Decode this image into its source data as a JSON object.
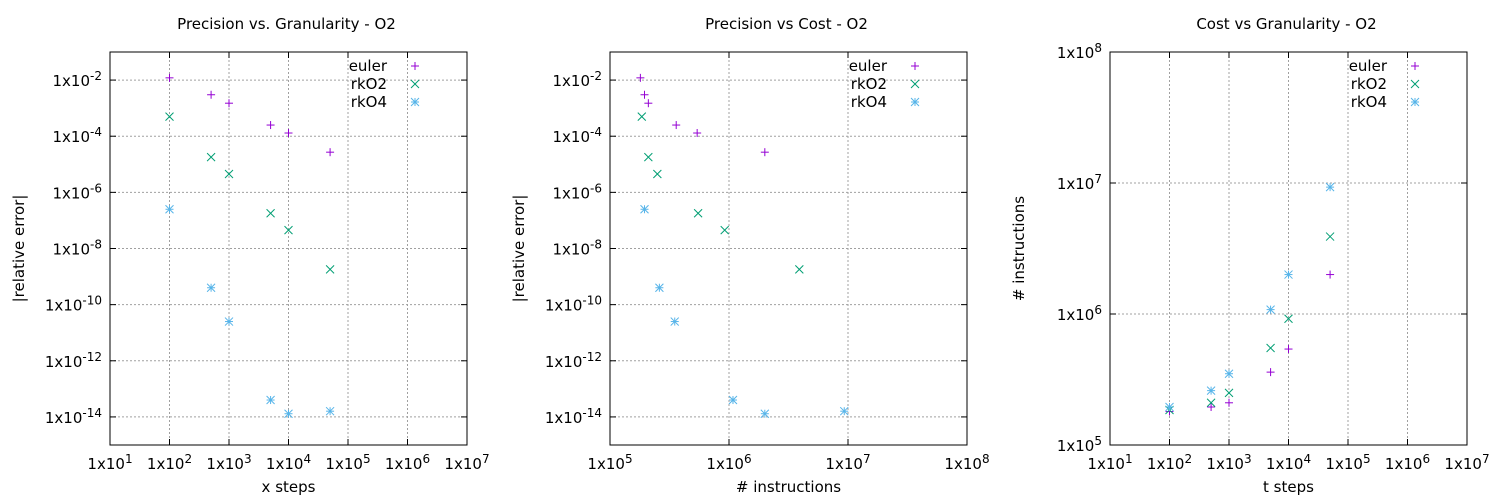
{
  "colors": {
    "euler": "#9400d3",
    "rkO2": "#009e73",
    "rkO4": "#56b4e9"
  },
  "chart_data": [
    {
      "type": "scatter",
      "title": "Precision vs. Granularity - O2",
      "xlabel": "x steps",
      "ylabel": "|relative error|",
      "xscale": "log",
      "yscale": "log",
      "xlim": [
        10,
        10000000
      ],
      "ylim": [
        1e-15,
        0.1
      ],
      "xticks": [
        10,
        100,
        1000,
        10000,
        100000,
        1000000,
        10000000
      ],
      "xtick_labels": [
        "1x10^1",
        "1x10^2",
        "1x10^3",
        "1x10^4",
        "1x10^5",
        "1x10^6",
        "1x10^7"
      ],
      "yticks": [
        1e-14,
        1e-12,
        1e-10,
        1e-08,
        1e-06,
        0.0001,
        0.01
      ],
      "ytick_labels": [
        "1x10^-14",
        "1x10^-12",
        "1x10^-10",
        "1x10^-8",
        "1x10^-6",
        "1x10^-4",
        "1x10^-2"
      ],
      "grid": true,
      "legend": "top-right",
      "series": [
        {
          "name": "euler",
          "marker": "plus",
          "x": [
            100,
            500,
            1000,
            5000,
            10000,
            50000
          ],
          "y": [
            0.012,
            0.003,
            0.0015,
            0.00025,
            0.00013,
            2.7e-05
          ]
        },
        {
          "name": "rkO2",
          "marker": "cross",
          "x": [
            100,
            500,
            1000,
            5000,
            10000,
            50000
          ],
          "y": [
            0.0005,
            1.8e-05,
            4.5e-06,
            1.8e-07,
            4.5e-08,
            1.8e-09
          ]
        },
        {
          "name": "rkO4",
          "marker": "star",
          "x": [
            100,
            500,
            1000,
            5000,
            10000,
            50000
          ],
          "y": [
            2.5e-07,
            4e-10,
            2.5e-11,
            4e-14,
            1.3e-14,
            1.6e-14
          ]
        }
      ]
    },
    {
      "type": "scatter",
      "title": "Precision vs Cost - O2",
      "xlabel": "# instructions",
      "ylabel": "|relative error|",
      "xscale": "log",
      "yscale": "log",
      "xlim": [
        100000,
        100000000
      ],
      "ylim": [
        1e-15,
        0.1
      ],
      "xticks": [
        100000,
        1000000,
        10000000,
        100000000
      ],
      "xtick_labels": [
        "1x10^5",
        "1x10^6",
        "1x10^7",
        "1x10^8"
      ],
      "yticks": [
        1e-14,
        1e-12,
        1e-10,
        1e-08,
        1e-06,
        0.0001,
        0.01
      ],
      "ytick_labels": [
        "1x10^-14",
        "1x10^-12",
        "1x10^-10",
        "1x10^-8",
        "1x10^-6",
        "1x10^-4",
        "1x10^-2"
      ],
      "grid": true,
      "legend": "top-right",
      "series": [
        {
          "name": "euler",
          "marker": "plus",
          "x": [
            180000,
            195000,
            210000,
            360000,
            540000,
            2000000
          ],
          "y": [
            0.012,
            0.003,
            0.0015,
            0.00025,
            0.00013,
            2.7e-05
          ]
        },
        {
          "name": "rkO2",
          "marker": "cross",
          "x": [
            185000,
            210000,
            250000,
            550000,
            920000,
            3900000
          ],
          "y": [
            0.0005,
            1.8e-05,
            4.5e-06,
            1.8e-07,
            4.5e-08,
            1.8e-09
          ]
        },
        {
          "name": "rkO4",
          "marker": "star",
          "x": [
            195000,
            260000,
            350000,
            1080000,
            2000000,
            9300000
          ],
          "y": [
            2.5e-07,
            4e-10,
            2.5e-11,
            4e-14,
            1.3e-14,
            1.6e-14
          ]
        }
      ]
    },
    {
      "type": "scatter",
      "title": "Cost vs Granularity - O2",
      "xlabel": "t steps",
      "ylabel": "# instructions",
      "xscale": "log",
      "yscale": "log",
      "xlim": [
        10,
        10000000
      ],
      "ylim": [
        100000,
        100000000
      ],
      "xticks": [
        10,
        100,
        1000,
        10000,
        100000,
        1000000,
        10000000
      ],
      "xtick_labels": [
        "1x10^1",
        "1x10^2",
        "1x10^3",
        "1x10^4",
        "1x10^5",
        "1x10^6",
        "1x10^7"
      ],
      "yticks": [
        100000,
        1000000,
        10000000,
        100000000
      ],
      "ytick_labels": [
        "1x10^5",
        "1x10^6",
        "1x10^7",
        "1x10^8"
      ],
      "grid": true,
      "legend": "top-right",
      "series": [
        {
          "name": "euler",
          "marker": "plus",
          "x": [
            100,
            500,
            1000,
            5000,
            10000,
            50000
          ],
          "y": [
            180000,
            195000,
            210000,
            360000,
            540000,
            2000000
          ]
        },
        {
          "name": "rkO2",
          "marker": "cross",
          "x": [
            100,
            500,
            1000,
            5000,
            10000,
            50000
          ],
          "y": [
            185000,
            210000,
            250000,
            550000,
            920000,
            3900000
          ]
        },
        {
          "name": "rkO4",
          "marker": "star",
          "x": [
            100,
            500,
            1000,
            5000,
            10000,
            50000
          ],
          "y": [
            195000,
            260000,
            350000,
            1080000,
            2000000,
            9300000
          ]
        }
      ]
    }
  ]
}
